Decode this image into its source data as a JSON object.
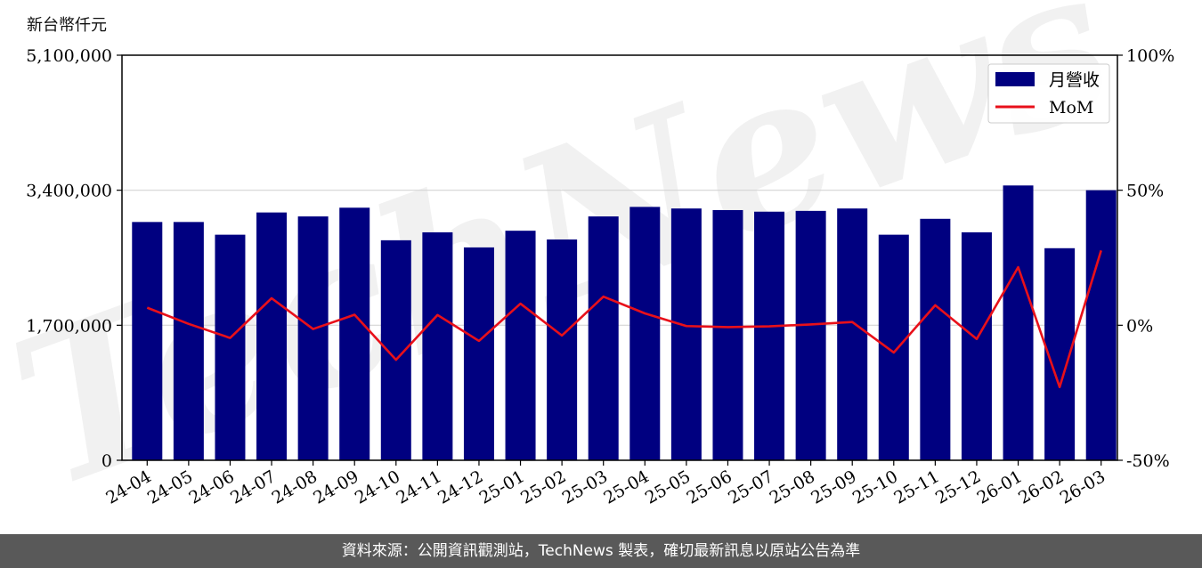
{
  "chart_data": {
    "type": "bar",
    "y_unit_label": "新台幣仟元",
    "categories": [
      "24-04",
      "24-05",
      "24-06",
      "24-07",
      "24-08",
      "24-09",
      "24-10",
      "24-11",
      "24-12",
      "25-01",
      "25-02",
      "25-03",
      "25-04",
      "25-05",
      "25-06",
      "25-07",
      "25-08",
      "25-09",
      "25-10",
      "25-11",
      "25-12",
      "26-01",
      "26-02",
      "26-03"
    ],
    "series": [
      {
        "name": "月營收",
        "kind": "bar",
        "axis": "left",
        "color": "#000080",
        "values": [
          3000000,
          3000000,
          2840000,
          3120000,
          3070000,
          3180000,
          2770000,
          2870000,
          2680000,
          2890000,
          2780000,
          3070000,
          3190000,
          3170000,
          3150000,
          3130000,
          3140000,
          3170000,
          2840000,
          3040000,
          2870000,
          3460000,
          2670000,
          3400000
        ]
      },
      {
        "name": "MoM",
        "kind": "line",
        "axis": "right",
        "color": "#e8101a",
        "values": [
          6.5,
          0.5,
          -4.7,
          10.0,
          -1.4,
          3.9,
          -12.8,
          3.8,
          -5.8,
          8.0,
          -3.8,
          10.6,
          4.4,
          -0.3,
          -0.7,
          -0.4,
          0.3,
          1.2,
          -10.1,
          7.4,
          -5.1,
          21.5,
          -22.9,
          27.7
        ]
      }
    ],
    "y_left": {
      "lim": [
        0,
        5100000
      ],
      "ticks": [
        "0",
        "1,700,000",
        "3,400,000",
        "5,100,000"
      ],
      "tick_values": [
        0,
        1700000,
        3400000,
        5100000
      ]
    },
    "y_right": {
      "lim": [
        -50,
        100
      ],
      "ticks": [
        "-50%",
        "0%",
        "50%",
        "100%"
      ],
      "tick_values": [
        -50,
        0,
        50,
        100
      ]
    },
    "grid": true,
    "legend_position": "top-right",
    "watermark": "TechNews"
  },
  "footer_text": "資料來源：公開資訊觀測站，TechNews 製表，確切最新訊息以原站公告為準"
}
